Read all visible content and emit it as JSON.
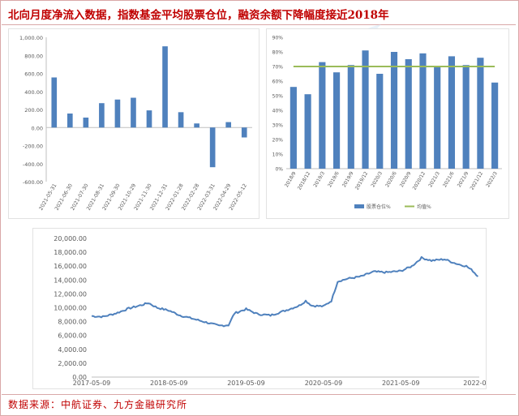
{
  "title": "北向月度净流入数据，指数基金平均股票仓位，融资余额下降幅度接近2018年",
  "source": "数据来源：中航证券、九方金融研究所",
  "colors": {
    "bar": "#4f81bd",
    "avg_line": "#9bbb59",
    "line": "#4f81bd",
    "title": "#c00000"
  },
  "chart_data": [
    {
      "type": "bar",
      "categories": [
        "2021-05-31",
        "2021-06-30",
        "2021-07-30",
        "2021-08-31",
        "2021-09-30",
        "2021-10-29",
        "2021-11-30",
        "2021-12-31",
        "2022-01-28",
        "2022-02-28",
        "2022-03-31",
        "2022-04-29",
        "2022-05-12"
      ],
      "values": [
        555,
        155,
        110,
        270,
        310,
        330,
        190,
        900,
        170,
        45,
        -440,
        60,
        -110
      ],
      "ylim": [
        -600,
        1000
      ],
      "yticks": [
        "1,000.00",
        "800.00",
        "600.00",
        "400.00",
        "200.00",
        "0.00",
        "-200.00",
        "-400.00",
        "-600.00"
      ],
      "tick_values": [
        1000,
        800,
        600,
        400,
        200,
        0,
        -200,
        -400,
        -600
      ]
    },
    {
      "type": "bar",
      "categories": [
        "2018/9",
        "2018/12",
        "2019/3",
        "2019/6",
        "2019/9",
        "2019/12",
        "2020/3",
        "2020/6",
        "2020/9",
        "2020/12",
        "2021/3",
        "2021/6",
        "2021/9",
        "2021/12",
        "2022/3"
      ],
      "series": [
        {
          "name": "股票仓位%",
          "values": [
            56,
            51,
            73,
            66,
            71,
            81,
            65,
            80,
            75,
            79,
            70,
            77,
            71,
            76,
            59
          ]
        },
        {
          "name": "均值%",
          "values": [
            70,
            70,
            70,
            70,
            70,
            70,
            70,
            70,
            70,
            70,
            70,
            70,
            70,
            70,
            70
          ]
        }
      ],
      "ylim": [
        0,
        90
      ],
      "yticks": [
        "90%",
        "80%",
        "70%",
        "60%",
        "50%",
        "40%",
        "30%",
        "20%",
        "10%",
        "0%"
      ],
      "tick_values": [
        90,
        80,
        70,
        60,
        50,
        40,
        30,
        20,
        10,
        0
      ]
    },
    {
      "type": "line",
      "x": [
        "2017-05-09",
        "2017-07-01",
        "2017-09-01",
        "2017-11-01",
        "2018-01-01",
        "2018-02-01",
        "2018-03-15",
        "2018-05-09",
        "2018-07-01",
        "2018-09-01",
        "2018-11-01",
        "2019-01-01",
        "2019-02-15",
        "2019-03-15",
        "2019-05-09",
        "2019-07-01",
        "2019-09-01",
        "2019-11-01",
        "2020-01-15",
        "2020-02-15",
        "2020-03-15",
        "2020-05-09",
        "2020-06-15",
        "2020-07-15",
        "2020-09-01",
        "2020-11-01",
        "2021-01-01",
        "2021-03-01",
        "2021-05-09",
        "2021-07-01",
        "2021-08-15",
        "2021-10-01",
        "2021-12-01",
        "2022-02-01",
        "2022-03-15",
        "2022-04-15",
        "2022-05-09"
      ],
      "values": [
        8800,
        8700,
        9200,
        9900,
        10400,
        10700,
        10000,
        9600,
        8900,
        8400,
        7900,
        7400,
        7500,
        9200,
        9800,
        9100,
        8900,
        9500,
        10300,
        11000,
        10300,
        10200,
        11000,
        13800,
        14200,
        14500,
        15200,
        15100,
        15300,
        16000,
        17200,
        16800,
        17000,
        16300,
        16000,
        15300,
        14500
      ],
      "ylim": [
        0,
        20000
      ],
      "yticks": [
        "20,000.00",
        "18,000.00",
        "16,000.00",
        "14,000.00",
        "12,000.00",
        "10,000.00",
        "8,000.00",
        "6,000.00",
        "4,000.00",
        "2,000.00",
        "0.00"
      ],
      "tick_values": [
        20000,
        18000,
        16000,
        14000,
        12000,
        10000,
        8000,
        6000,
        4000,
        2000,
        0
      ],
      "xticks": [
        "2017-05-09",
        "2018-05-09",
        "2019-05-09",
        "2020-05-09",
        "2021-05-09",
        "2022-05-"
      ]
    }
  ]
}
